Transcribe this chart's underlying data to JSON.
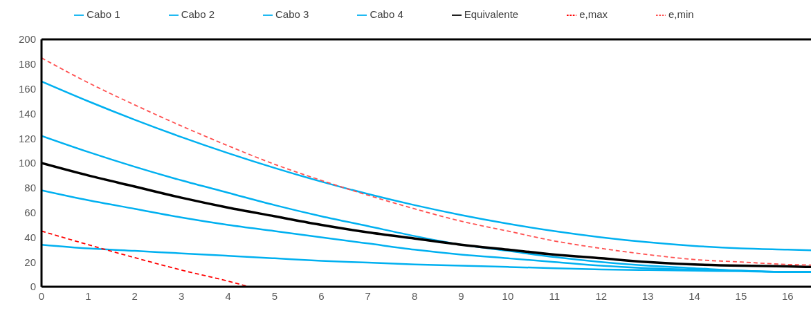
{
  "chart_data": {
    "type": "line",
    "x": [
      0,
      1,
      2,
      3,
      4,
      5,
      6,
      7,
      8,
      9,
      10,
      11,
      12,
      13,
      14,
      15,
      16,
      16.5
    ],
    "series": [
      {
        "name": "Cabo 1",
        "color": "#00b0f0",
        "values": [
          166,
          150,
          135,
          121,
          108,
          96,
          85,
          75,
          66,
          58,
          51,
          45,
          40,
          36,
          33,
          31,
          30,
          29.5
        ]
      },
      {
        "name": "Cabo 2",
        "color": "#00b0f0",
        "values": [
          122,
          109,
          97,
          86,
          76,
          66,
          57,
          49,
          41,
          34,
          29,
          24,
          20,
          17,
          15,
          13,
          12,
          12
        ]
      },
      {
        "name": "Cabo 3",
        "color": "#00b0f0",
        "values": [
          78,
          70,
          63,
          56,
          50,
          45,
          40,
          35,
          30,
          26,
          23,
          20,
          17,
          15,
          14,
          13,
          12,
          12
        ]
      },
      {
        "name": "Cabo 4",
        "color": "#00b0f0",
        "values": [
          34,
          31,
          29,
          27,
          25,
          23,
          21,
          19.5,
          18,
          17,
          16,
          15,
          14,
          13.5,
          13,
          12.5,
          12,
          12
        ]
      },
      {
        "name": "Equivalente",
        "color": "#000000",
        "values": [
          100,
          90,
          81,
          72,
          64,
          57,
          50,
          44,
          39,
          34,
          30,
          26,
          23,
          20,
          18,
          17,
          16.5,
          16
        ]
      },
      {
        "name": "e,max",
        "color": "#ff0000",
        "line_style": "dashed",
        "x": [
          0,
          1,
          2,
          3,
          4,
          4.45
        ],
        "values": [
          45,
          34,
          23.5,
          13.5,
          4.5,
          0
        ]
      },
      {
        "name": "e,min",
        "color": "#ff5050",
        "line_style": "dashed",
        "values": [
          185,
          165,
          147,
          130,
          114,
          99,
          86,
          74,
          63,
          53,
          45,
          37,
          31,
          26,
          22,
          20,
          18,
          17.5
        ]
      }
    ],
    "xlim": [
      0,
      16.5
    ],
    "xticks": [
      0,
      1,
      2,
      3,
      4,
      5,
      6,
      7,
      8,
      9,
      10,
      11,
      12,
      13,
      14,
      15,
      16
    ],
    "ylim": [
      0,
      200
    ],
    "yticks": [
      0,
      20,
      40,
      60,
      80,
      100,
      120,
      140,
      160,
      180,
      200
    ],
    "legend": "top",
    "marker": "none",
    "line_style": "solid"
  }
}
